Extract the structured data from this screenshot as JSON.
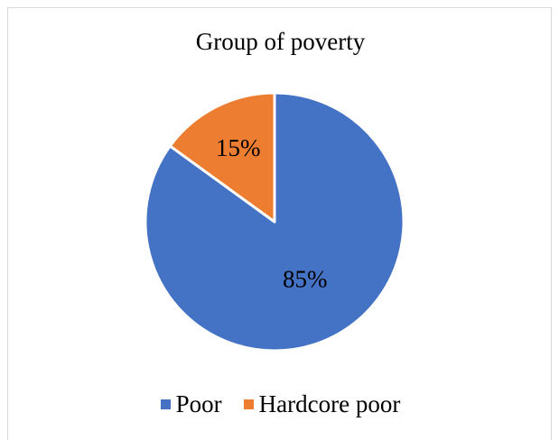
{
  "chart_data": {
    "type": "pie",
    "title": "Group of poverty",
    "categories": [
      "Poor",
      "Hardcore poor"
    ],
    "values": [
      85,
      15
    ],
    "data_labels": [
      "85%",
      "15%"
    ],
    "colors": [
      "#4472c4",
      "#ed7d31"
    ],
    "legend_position": "bottom"
  }
}
